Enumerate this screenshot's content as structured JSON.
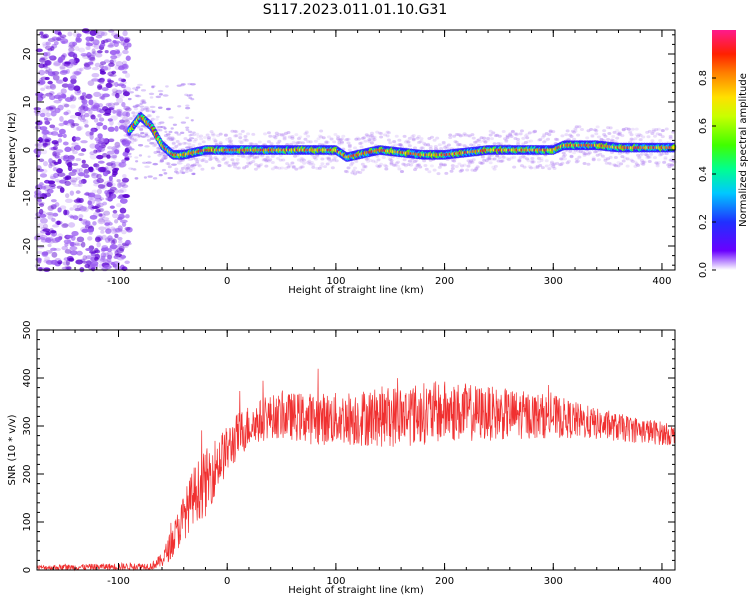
{
  "title": "S117.2023.011.01.10.G31",
  "colors": {
    "snr_line": "#f03030",
    "ridge": "#e02020",
    "noise": "#6a00d8",
    "axis": "#000000"
  },
  "chart_data": [
    {
      "type": "heatmap",
      "xlabel": "Height of straight line (km)",
      "ylabel": "Frequency (Hz)",
      "xlim": [
        -175,
        412
      ],
      "ylim": [
        -25,
        25
      ],
      "xticks": [
        -100,
        0,
        100,
        200,
        300,
        400
      ],
      "yticks": [
        -20,
        -10,
        0,
        10,
        20
      ],
      "colorbar": {
        "label": "Normalized spectral amplitude",
        "range": [
          0,
          1
        ],
        "ticks": [
          "0.0",
          "0.2",
          "0.4",
          "0.6",
          "0.8"
        ],
        "colormap": "rainbow"
      },
      "ridge": {
        "x": [
          -90,
          -80,
          -70,
          -60,
          -50,
          -40,
          -30,
          -20,
          -10,
          0,
          20,
          40,
          60,
          80,
          100,
          110,
          120,
          140,
          160,
          180,
          200,
          220,
          240,
          260,
          280,
          300,
          310,
          320,
          340,
          360,
          380,
          400,
          412
        ],
        "freq": [
          4,
          7,
          5,
          1,
          -1,
          -1,
          -0.5,
          0,
          0,
          0,
          0,
          0,
          0,
          0,
          0,
          -1.5,
          -1,
          0,
          -0.5,
          -1,
          -1,
          -0.5,
          0,
          0,
          0,
          0,
          1,
          1,
          1,
          0.5,
          0.5,
          0.5,
          0.5
        ]
      },
      "noise_region_x": [
        -175,
        -90
      ]
    },
    {
      "type": "line",
      "xlabel": "Height of straight line (km)",
      "ylabel": "SNR (10 * v/v)",
      "xlim": [
        -175,
        412
      ],
      "ylim": [
        0,
        500
      ],
      "xticks": [
        -100,
        0,
        100,
        200,
        300,
        400
      ],
      "yticks": [
        0,
        100,
        200,
        300,
        400,
        500
      ],
      "envelope": {
        "x": [
          -175,
          -70,
          -60,
          -50,
          -40,
          -30,
          -20,
          -10,
          0,
          10,
          20,
          40,
          60,
          80,
          100,
          150,
          200,
          250,
          300,
          350,
          400,
          412
        ],
        "mean": [
          5,
          8,
          20,
          60,
          110,
          160,
          180,
          220,
          250,
          280,
          300,
          320,
          320,
          315,
          315,
          320,
          330,
          325,
          320,
          300,
          285,
          280
        ],
        "spread": [
          5,
          8,
          15,
          35,
          50,
          60,
          70,
          60,
          50,
          50,
          45,
          45,
          50,
          55,
          55,
          65,
          65,
          55,
          45,
          30,
          25,
          20
        ]
      }
    }
  ]
}
